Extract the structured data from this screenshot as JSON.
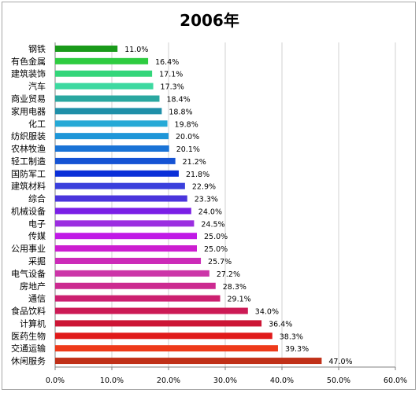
{
  "chart_data": {
    "type": "bar",
    "orientation": "horizontal",
    "title": "2006年",
    "xlabel": "",
    "ylabel": "",
    "xlim": [
      0,
      0.6
    ],
    "grid": true,
    "legend": "none",
    "categories": [
      "钢铁",
      "有色金属",
      "建筑装饰",
      "汽车",
      "商业贸易",
      "家用电器",
      "化工",
      "纺织服装",
      "农林牧渔",
      "轻工制造",
      "国防军工",
      "建筑材料",
      "综合",
      "机械设备",
      "电子",
      "传媒",
      "公用事业",
      "采掘",
      "电气设备",
      "房地产",
      "通信",
      "食品饮料",
      "计算机",
      "医药生物",
      "交通运输",
      "休闲服务"
    ],
    "values": [
      0.11,
      0.164,
      0.171,
      0.173,
      0.184,
      0.188,
      0.198,
      0.2,
      0.201,
      0.212,
      0.218,
      0.229,
      0.233,
      0.24,
      0.245,
      0.25,
      0.25,
      0.257,
      0.272,
      0.283,
      0.291,
      0.34,
      0.364,
      0.383,
      0.393,
      0.47
    ],
    "value_labels": [
      "11.0%",
      "16.4%",
      "17.1%",
      "17.3%",
      "18.4%",
      "18.8%",
      "19.8%",
      "20.0%",
      "20.1%",
      "21.2%",
      "21.8%",
      "22.9%",
      "23.3%",
      "24.0%",
      "24.5%",
      "25.0%",
      "25.0%",
      "25.7%",
      "27.2%",
      "28.3%",
      "29.1%",
      "34.0%",
      "36.4%",
      "38.3%",
      "39.3%",
      "47.0%"
    ],
    "bar_colors": [
      "#1a9a1a",
      "#2ecc40",
      "#33d67a",
      "#3dd9a0",
      "#2aa7a0",
      "#1f8fa8",
      "#25a9d6",
      "#1e96d8",
      "#1a73d6",
      "#1553d4",
      "#0a2fd8",
      "#3a3fdc",
      "#4a35dc",
      "#7a1fe6",
      "#9b2ee0",
      "#c01ae6",
      "#cc1ed0",
      "#cc2ab8",
      "#cc35a8",
      "#cc2a90",
      "#cc2070",
      "#cc1a55",
      "#cc1535",
      "#e01a1a",
      "#ee3a1a",
      "#c03018"
    ],
    "ticks": [
      "0.0%",
      "10.0%",
      "20.0%",
      "30.0%",
      "40.0%",
      "50.0%",
      "60.0%"
    ],
    "tick_values": [
      0,
      0.1,
      0.2,
      0.3,
      0.4,
      0.5,
      0.6
    ]
  }
}
